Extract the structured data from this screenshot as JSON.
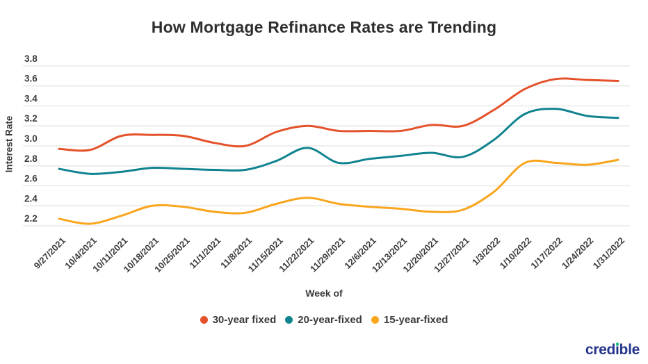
{
  "title": "How Mortgage Refinance Rates are Trending",
  "axes": {
    "y_title": "Interest Rate",
    "x_title": "Week of",
    "y_ticks": [
      3.8,
      3.6,
      3.4,
      3.2,
      3.0,
      2.8,
      2.6,
      2.4,
      2.2
    ]
  },
  "colors": {
    "series_30_year": "#e4512a",
    "series_20_year": "#10838f",
    "series_15_year": "#f9a51d",
    "gridline": "#e4e4e4",
    "tick_text": "#3b3b3b",
    "title_text": "#2e2e2e",
    "logo_blue": "#26358c",
    "logo_dot_green": "#27c285"
  },
  "legend": [
    {
      "label": "30-year fixed",
      "color": "#e4512a"
    },
    {
      "label": "20-year-fixed",
      "color": "#10838f"
    },
    {
      "label": "15-year-fixed",
      "color": "#f9a51d"
    }
  ],
  "watermark": {
    "text": "credible",
    "pre_i": "cred",
    "dotless_i": "ı",
    "post_i": "ble"
  },
  "chart_data": {
    "type": "line",
    "title": "How Mortgage Refinance Rates are Trending",
    "xlabel": "Week of",
    "ylabel": "Interest Rate",
    "ylim": [
      2.2,
      3.8
    ],
    "y_tick_step": 0.2,
    "grid": true,
    "legend_position": "bottom",
    "x": [
      "9/27/2021",
      "10/4/2021",
      "10/11/2021",
      "10/18/2021",
      "10/25/2021",
      "11/1/2021",
      "11/8/2021",
      "11/15/2021",
      "11/22/2021",
      "11/29/2021",
      "12/6/2021",
      "12/13/2021",
      "12/20/2021",
      "12/27/2021",
      "1/3/2022",
      "1/10/2022",
      "1/17/2022",
      "1/24/2022",
      "1/31/2022"
    ],
    "series": [
      {
        "name": "30-year fixed",
        "color": "#e4512a",
        "values": [
          2.97,
          2.96,
          3.1,
          3.11,
          3.1,
          3.03,
          3.0,
          3.14,
          3.2,
          3.15,
          3.15,
          3.15,
          3.21,
          3.2,
          3.36,
          3.57,
          3.67,
          3.66,
          3.65
        ]
      },
      {
        "name": "20-year-fixed",
        "color": "#10838f",
        "values": [
          2.77,
          2.72,
          2.74,
          2.78,
          2.77,
          2.76,
          2.76,
          2.85,
          2.98,
          2.83,
          2.87,
          2.9,
          2.93,
          2.89,
          3.06,
          3.32,
          3.37,
          3.3,
          3.28
        ]
      },
      {
        "name": "15-year-fixed",
        "color": "#f9a51d",
        "values": [
          2.27,
          2.22,
          2.3,
          2.4,
          2.39,
          2.34,
          2.33,
          2.42,
          2.48,
          2.42,
          2.39,
          2.37,
          2.34,
          2.36,
          2.54,
          2.83,
          2.83,
          2.81,
          2.86
        ]
      }
    ]
  }
}
